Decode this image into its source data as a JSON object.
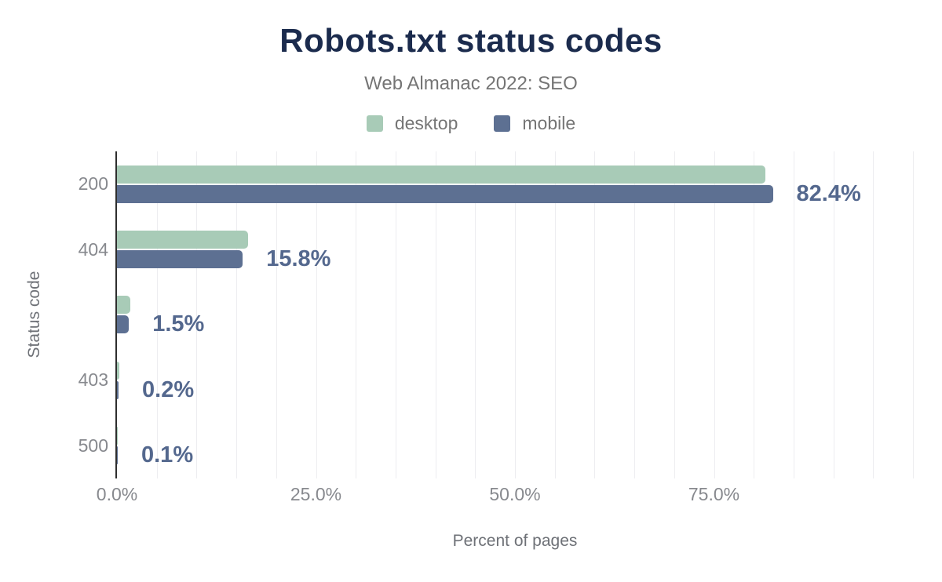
{
  "title": "Robots.txt status codes",
  "subtitle": "Web Almanac 2022: SEO",
  "colors": {
    "title_text": "#1b2b4d",
    "subtitle_text": "#757575",
    "desktop_bar": "#a8cbb7",
    "mobile_bar": "#5d7092",
    "value_label_text": "#54688e",
    "axis_line": "#2e2e2e",
    "gridline": "#ededf0",
    "tick_text": "#87898e",
    "axis_title_text": "#6e7177"
  },
  "chart_data": {
    "type": "bar",
    "orientation": "horizontal",
    "title": "Robots.txt status codes",
    "subtitle": "Web Almanac 2022: SEO",
    "categories": [
      "200",
      "404",
      "",
      "403",
      "500"
    ],
    "series": [
      {
        "name": "desktop",
        "color": "#a8cbb7",
        "values": [
          81.5,
          16.5,
          1.7,
          0.3,
          0.1
        ]
      },
      {
        "name": "mobile",
        "color": "#5d7092",
        "values": [
          82.4,
          15.8,
          1.5,
          0.2,
          0.1
        ]
      }
    ],
    "data_labels": [
      "82.4%",
      "15.8%",
      "1.5%",
      "0.2%",
      "0.1%"
    ],
    "data_labels_series": "mobile",
    "xlabel": "Percent of pages",
    "ylabel": "Status code",
    "xlim": [
      0,
      100
    ],
    "xticks": [
      "0.0%",
      "25.0%",
      "50.0%",
      "75.0%"
    ],
    "xtick_values": [
      0,
      25,
      50,
      75
    ],
    "grid": "vertical minor gridlines every 5%",
    "legend_position": "top-center"
  }
}
